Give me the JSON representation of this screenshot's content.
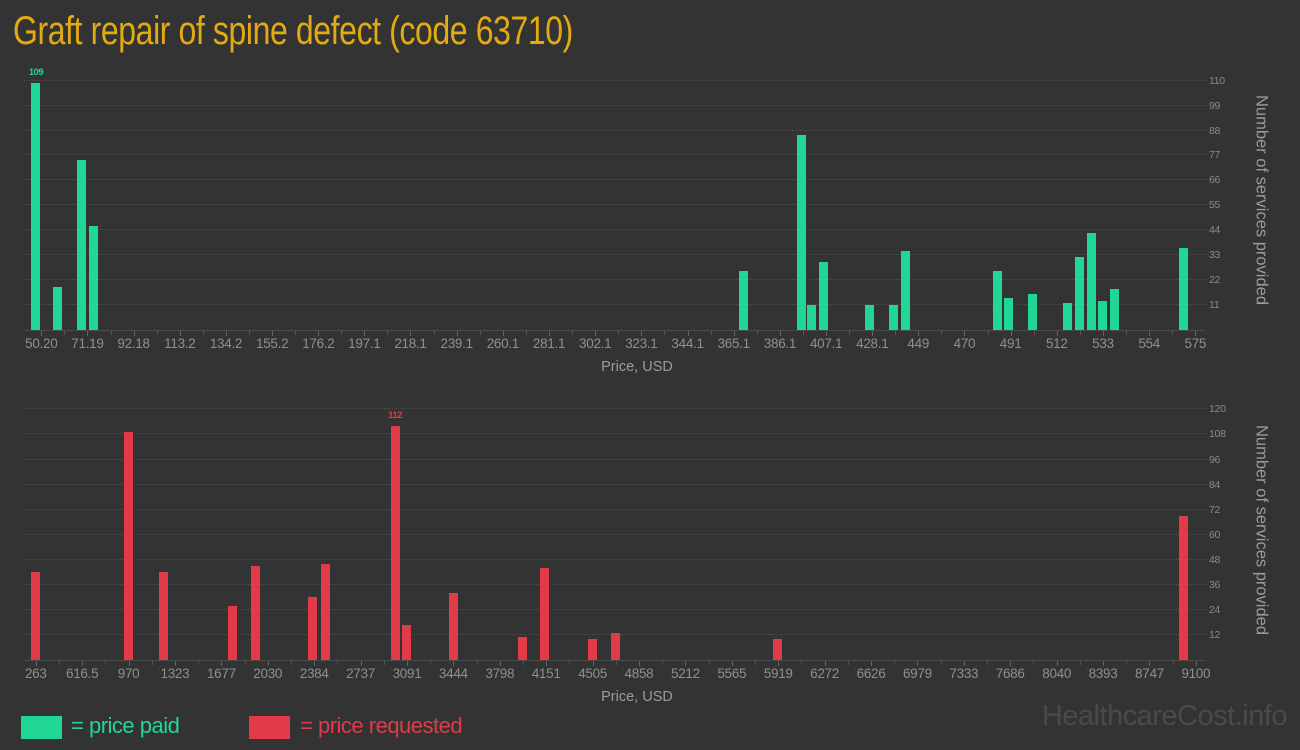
{
  "page": {
    "title": "Graft repair of spine defect (code 63710)",
    "watermark": "HealthcareCost.info"
  },
  "legend": {
    "paid": {
      "label": "= price paid"
    },
    "requested": {
      "label": "= price requested"
    }
  },
  "colors": {
    "background": "#333333",
    "paid": "#21d796",
    "requested": "#e13b4a",
    "title": "#e3ab10",
    "tick_label": "#8f8f8f",
    "axis_title": "#9b9b9b",
    "grid": "#4f4f4f",
    "watermark": "#4a4a4a"
  },
  "chart_data": [
    {
      "type": "bar",
      "id": "price-paid",
      "series": "price paid",
      "color": "#21d796",
      "xlabel": "Price, USD",
      "ylabel": "Number of services provided",
      "grid": "dotted-horizontal",
      "y_axis_side": "right",
      "x_ticks": [
        "50.20",
        "71.19",
        "92.18",
        "113.2",
        "134.2",
        "155.2",
        "176.2",
        "197.1",
        "218.1",
        "239.1",
        "260.1",
        "281.1",
        "302.1",
        "323.1",
        "344.1",
        "365.1",
        "386.1",
        "407.1",
        "428.1",
        "449",
        "470",
        "491",
        "512",
        "533",
        "554",
        "575"
      ],
      "y_ticks": [
        11,
        22,
        33,
        44,
        55,
        66,
        77,
        88,
        99,
        110
      ],
      "x_axis_range": [
        42.8,
        579.4
      ],
      "y_axis_max": 112.5,
      "bars": [
        {
          "price": 47.8,
          "count": 109,
          "label": "109"
        },
        {
          "price": 57.7,
          "count": 19
        },
        {
          "price": 68.3,
          "count": 75
        },
        {
          "price": 73.9,
          "count": 46
        },
        {
          "price": 369.5,
          "count": 26
        },
        {
          "price": 395.9,
          "count": 86
        },
        {
          "price": 400.6,
          "count": 11
        },
        {
          "price": 405.9,
          "count": 30
        },
        {
          "price": 427.0,
          "count": 11
        },
        {
          "price": 437.8,
          "count": 11
        },
        {
          "price": 443.3,
          "count": 35
        },
        {
          "price": 485.1,
          "count": 26
        },
        {
          "price": 490.2,
          "count": 14
        },
        {
          "price": 501.1,
          "count": 16
        },
        {
          "price": 517.0,
          "count": 12
        },
        {
          "price": 522.3,
          "count": 32
        },
        {
          "price": 527.6,
          "count": 43
        },
        {
          "price": 532.7,
          "count": 13
        },
        {
          "price": 538.1,
          "count": 18
        },
        {
          "price": 569.7,
          "count": 36
        }
      ]
    },
    {
      "type": "bar",
      "id": "price-requested",
      "series": "price requested",
      "color": "#e13b4a",
      "xlabel": "Price, USD",
      "ylabel": "Number of services provided",
      "grid": "dotted-horizontal",
      "y_axis_side": "right",
      "x_ticks": [
        "263",
        "616.5",
        "970",
        "1323",
        "1677",
        "2030",
        "2384",
        "2737",
        "3091",
        "3444",
        "3798",
        "4151",
        "4505",
        "4858",
        "5212",
        "5565",
        "5919",
        "6272",
        "6626",
        "6979",
        "7333",
        "7686",
        "8040",
        "8393",
        "8747",
        "9100"
      ],
      "y_ticks": [
        12,
        24,
        36,
        48,
        60,
        72,
        84,
        96,
        108,
        120
      ],
      "x_axis_range": [
        181,
        9170
      ],
      "y_axis_max": 122.1,
      "bars": [
        {
          "price": 262,
          "count": 42
        },
        {
          "price": 970,
          "count": 109
        },
        {
          "price": 1235,
          "count": 42
        },
        {
          "price": 1764,
          "count": 26
        },
        {
          "price": 1935,
          "count": 45
        },
        {
          "price": 2374,
          "count": 30
        },
        {
          "price": 2473,
          "count": 46
        },
        {
          "price": 3000,
          "count": 112,
          "label": "112"
        },
        {
          "price": 3089,
          "count": 17
        },
        {
          "price": 3444,
          "count": 32
        },
        {
          "price": 3970,
          "count": 11
        },
        {
          "price": 4137,
          "count": 44
        },
        {
          "price": 4503,
          "count": 10
        },
        {
          "price": 4681,
          "count": 13
        },
        {
          "price": 5912,
          "count": 10
        },
        {
          "price": 9008,
          "count": 69
        }
      ]
    }
  ]
}
